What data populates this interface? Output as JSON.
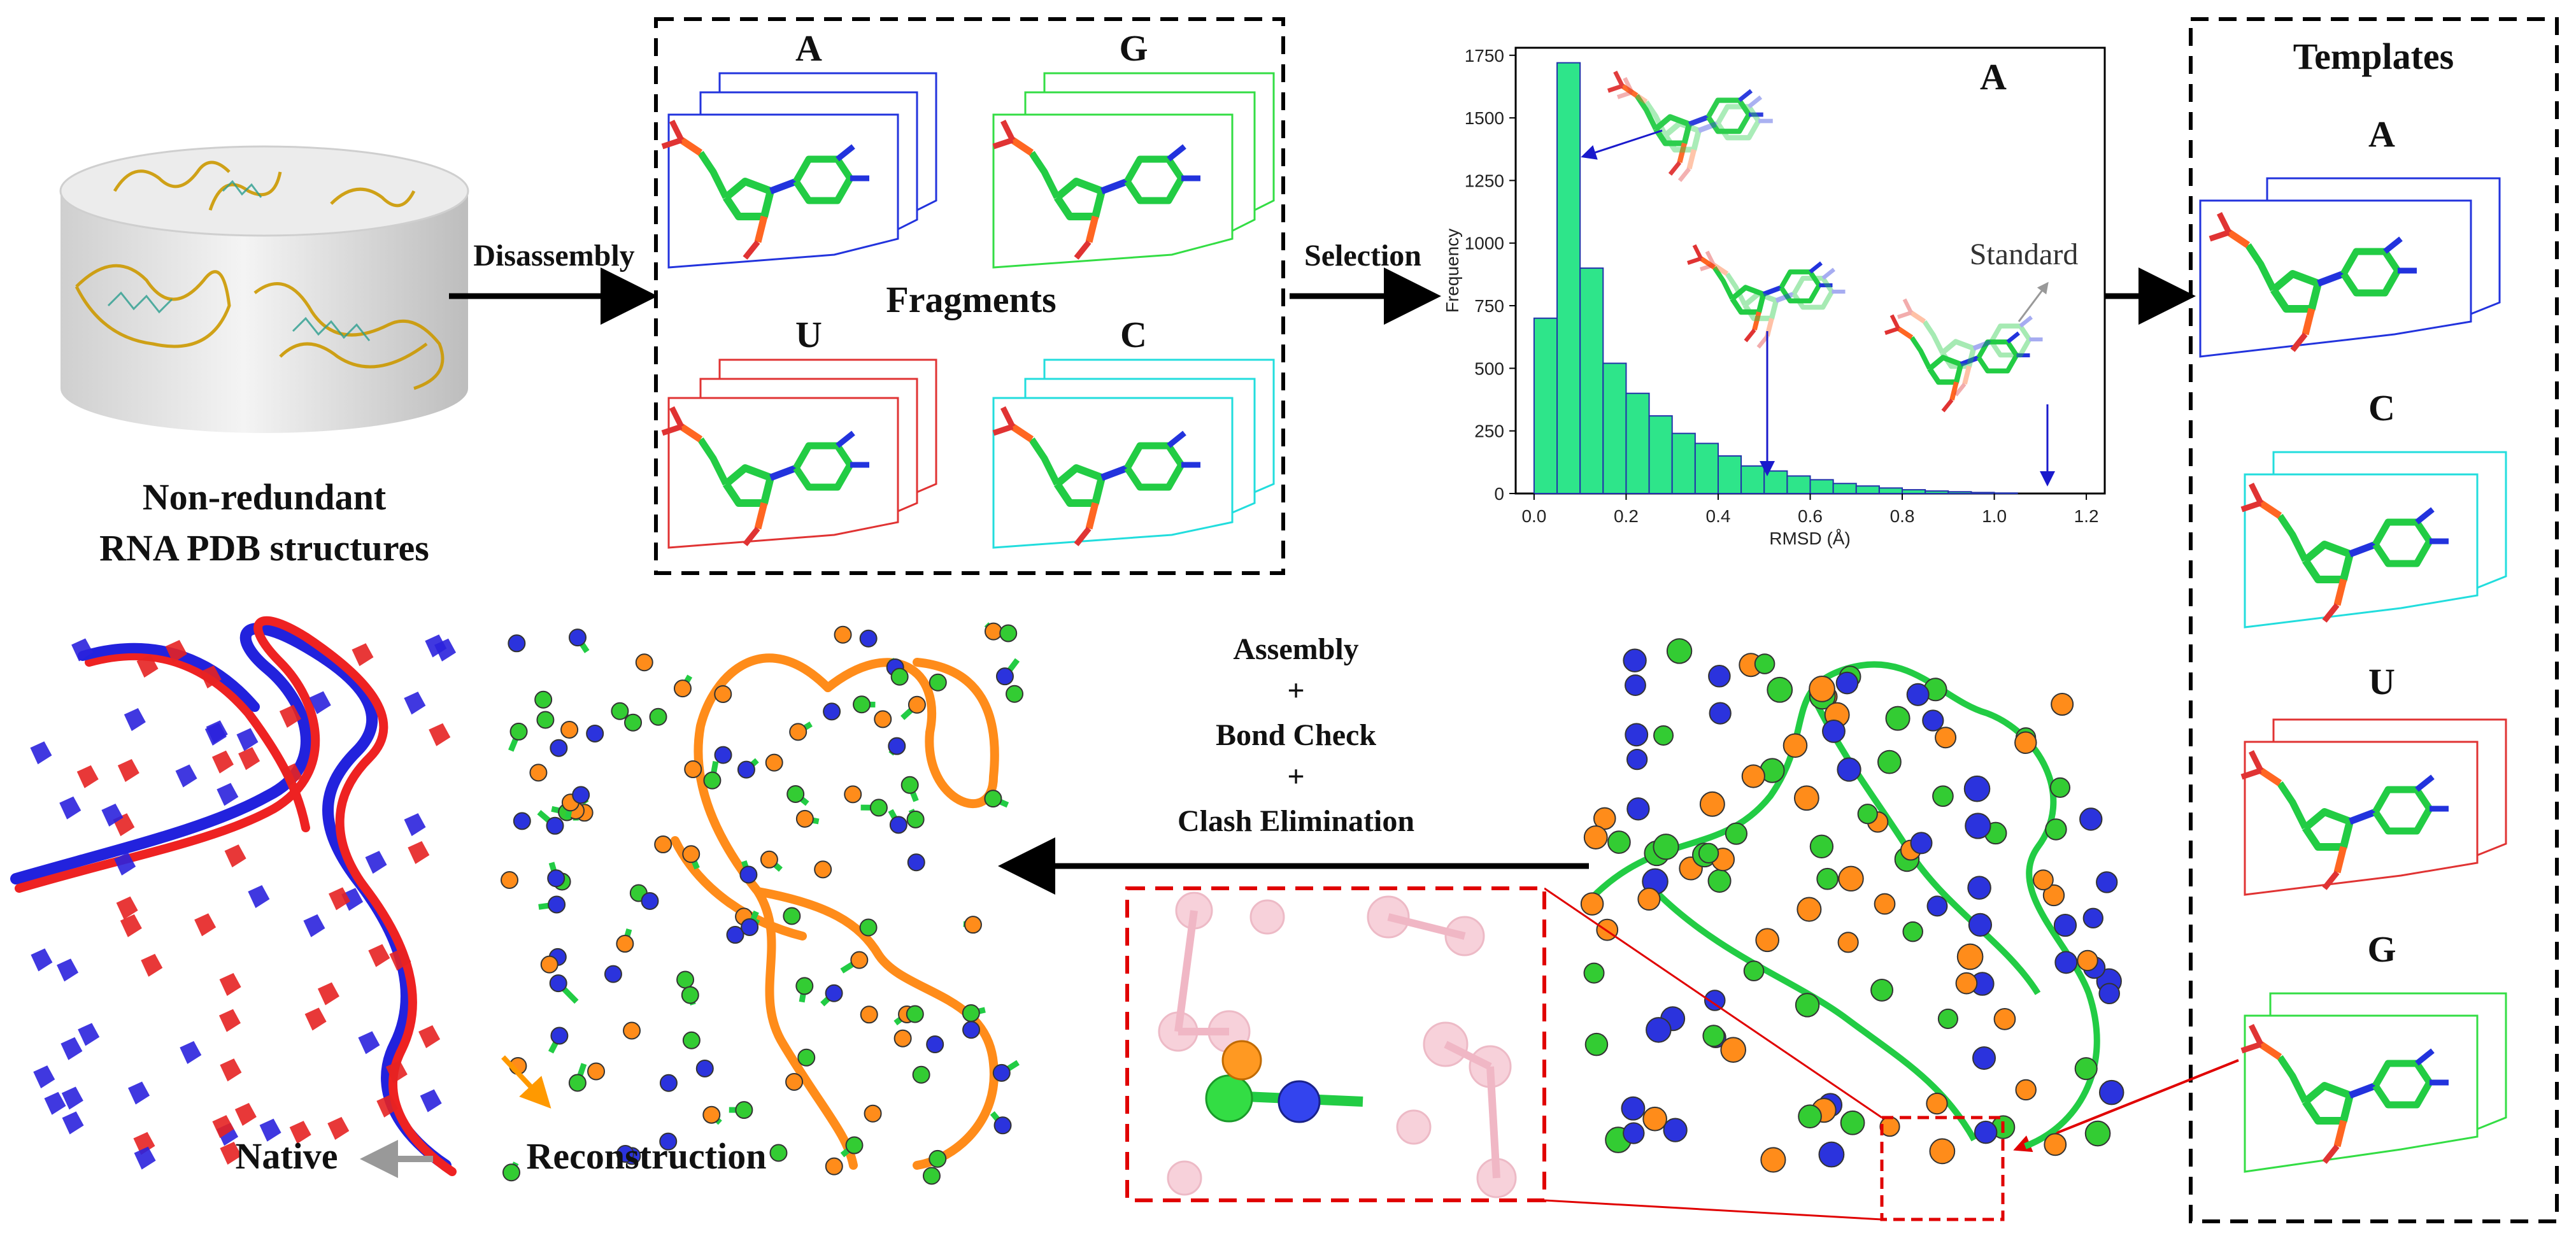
{
  "database": {
    "title_line1": "Non-redundant",
    "title_line2": "RNA PDB structures"
  },
  "steps": {
    "disassembly": "Disassembly",
    "selection": "Selection",
    "assembly": "Assembly",
    "plus1": "+",
    "bond_check": "Bond Check",
    "plus2": "+",
    "clash": "Clash Elimination"
  },
  "fragments": {
    "title": "Fragments",
    "items": [
      {
        "base": "A",
        "color": "#2233dd"
      },
      {
        "base": "G",
        "color": "#33dd44"
      },
      {
        "base": "U",
        "color": "#e03333"
      },
      {
        "base": "C",
        "color": "#22dddd"
      }
    ]
  },
  "templates": {
    "title": "Templates",
    "items": [
      {
        "base": "A",
        "color": "#2233dd"
      },
      {
        "base": "C",
        "color": "#22dddd"
      },
      {
        "base": "U",
        "color": "#e03333"
      },
      {
        "base": "G",
        "color": "#33dd44"
      }
    ]
  },
  "chart_data": {
    "type": "bar",
    "title": "A",
    "xlabel": "RMSD (Å)",
    "ylabel": "Frequency",
    "xlim": [
      -0.04,
      1.24
    ],
    "ylim": [
      0,
      1780
    ],
    "bin_width": 0.05,
    "x_ticks": [
      "0.0",
      "0.2",
      "0.4",
      "0.6",
      "0.8",
      "1.0",
      "1.2"
    ],
    "y_ticks": [
      "0",
      "250",
      "500",
      "750",
      "1000",
      "1250",
      "1500",
      "1750"
    ],
    "bins_start": [
      0.0,
      0.05,
      0.1,
      0.15,
      0.2,
      0.25,
      0.3,
      0.35,
      0.4,
      0.45,
      0.5,
      0.55,
      0.6,
      0.65,
      0.7,
      0.75,
      0.8,
      0.85,
      0.9,
      0.95,
      1.0
    ],
    "values": [
      700,
      1720,
      900,
      520,
      400,
      310,
      240,
      200,
      150,
      110,
      90,
      70,
      55,
      40,
      30,
      22,
      15,
      10,
      7,
      4,
      2
    ],
    "bar_color": "#2ee58a",
    "annotation": "Standard"
  },
  "bottom": {
    "native": "Native",
    "reconstruction": "Reconstruction"
  }
}
